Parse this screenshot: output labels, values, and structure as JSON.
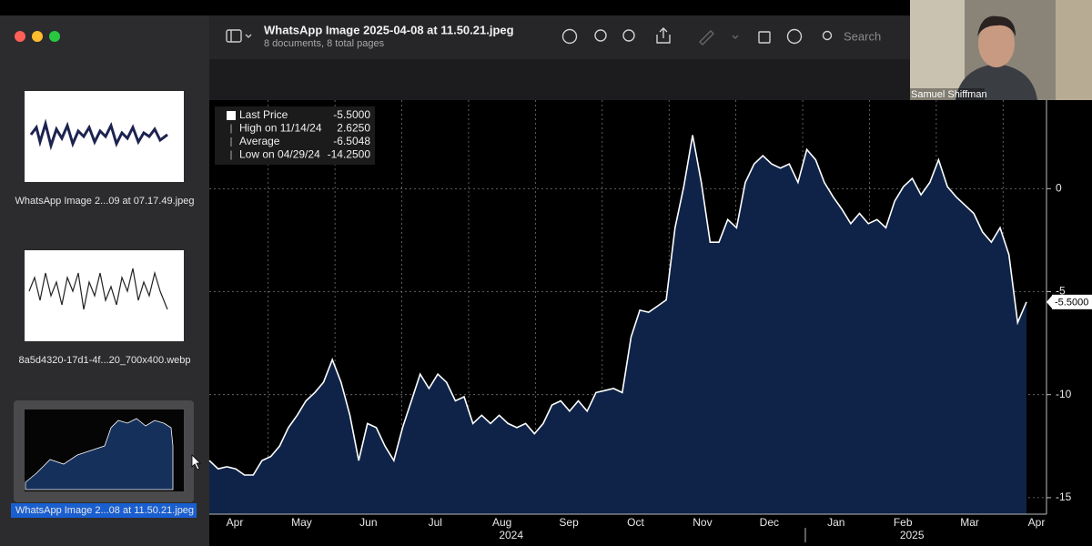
{
  "window": {
    "title": "WhatsApp Image 2025-04-08 at 11.50.21.jpeg",
    "subtitle": "8 documents, 8 total pages",
    "search_placeholder": "Search"
  },
  "sidebar": {
    "items": [
      {
        "caption": "WhatsApp Image 2...09 at 07.17.49.jpeg"
      },
      {
        "caption": "8a5d4320-17d1-4f...20_700x400.webp"
      },
      {
        "caption": "WhatsApp Image 2...08 at 11.50.21.jpeg"
      }
    ]
  },
  "video": {
    "name": "Samuel Shiffman"
  },
  "chart_data": {
    "type": "area",
    "months": [
      "Apr",
      "May",
      "Jun",
      "Jul",
      "Aug",
      "Sep",
      "Oct",
      "Nov",
      "Dec",
      "Jan",
      "Feb",
      "Mar",
      "Apr"
    ],
    "year_labels": [
      "2024",
      "2025"
    ],
    "values": [
      -13.2,
      -13.6,
      -13.5,
      -13.6,
      -13.9,
      -13.9,
      -13.2,
      -13.0,
      -12.5,
      -11.6,
      -11.0,
      -10.3,
      -9.9,
      -9.4,
      -8.3,
      -9.4,
      -11.0,
      -13.2,
      -11.4,
      -11.6,
      -12.5,
      -13.2,
      -11.6,
      -10.3,
      -9.0,
      -9.7,
      -9.0,
      -9.4,
      -10.3,
      -10.1,
      -11.4,
      -11.0,
      -11.4,
      -11.0,
      -11.4,
      -11.6,
      -11.4,
      -11.9,
      -11.4,
      -10.5,
      -10.3,
      -10.8,
      -10.3,
      -10.8,
      -9.9,
      -9.8,
      -9.7,
      -9.9,
      -7.2,
      -5.9,
      -6.0,
      -5.7,
      -5.4,
      -1.9,
      0.1,
      2.6,
      0.3,
      -2.6,
      -2.6,
      -1.5,
      -1.9,
      0.3,
      1.2,
      1.6,
      1.2,
      1.0,
      1.2,
      0.3,
      1.9,
      1.4,
      0.3,
      -0.4,
      -1.0,
      -1.7,
      -1.2,
      -1.7,
      -1.5,
      -1.9,
      -0.6,
      0.1,
      0.5,
      -0.3,
      0.3,
      1.4,
      0.1,
      -0.4,
      -0.8,
      -1.2,
      -2.1,
      -2.6,
      -1.9,
      -3.2,
      -6.5,
      -5.5
    ],
    "color": "#0f2348",
    "line_color": "#ffffff",
    "ylim": [
      -15.8,
      4.3
    ],
    "yticks": [
      0,
      -5,
      -10,
      -15
    ],
    "grid": true,
    "last_value_label": "-5.5000",
    "legend": [
      {
        "label": "Last Price",
        "value": "-5.5000"
      },
      {
        "label": "High on 11/14/24",
        "value": "2.6250"
      },
      {
        "label": "Average",
        "value": "-6.5048"
      },
      {
        "label": "Low on 04/29/24",
        "value": "-14.2500"
      }
    ]
  }
}
